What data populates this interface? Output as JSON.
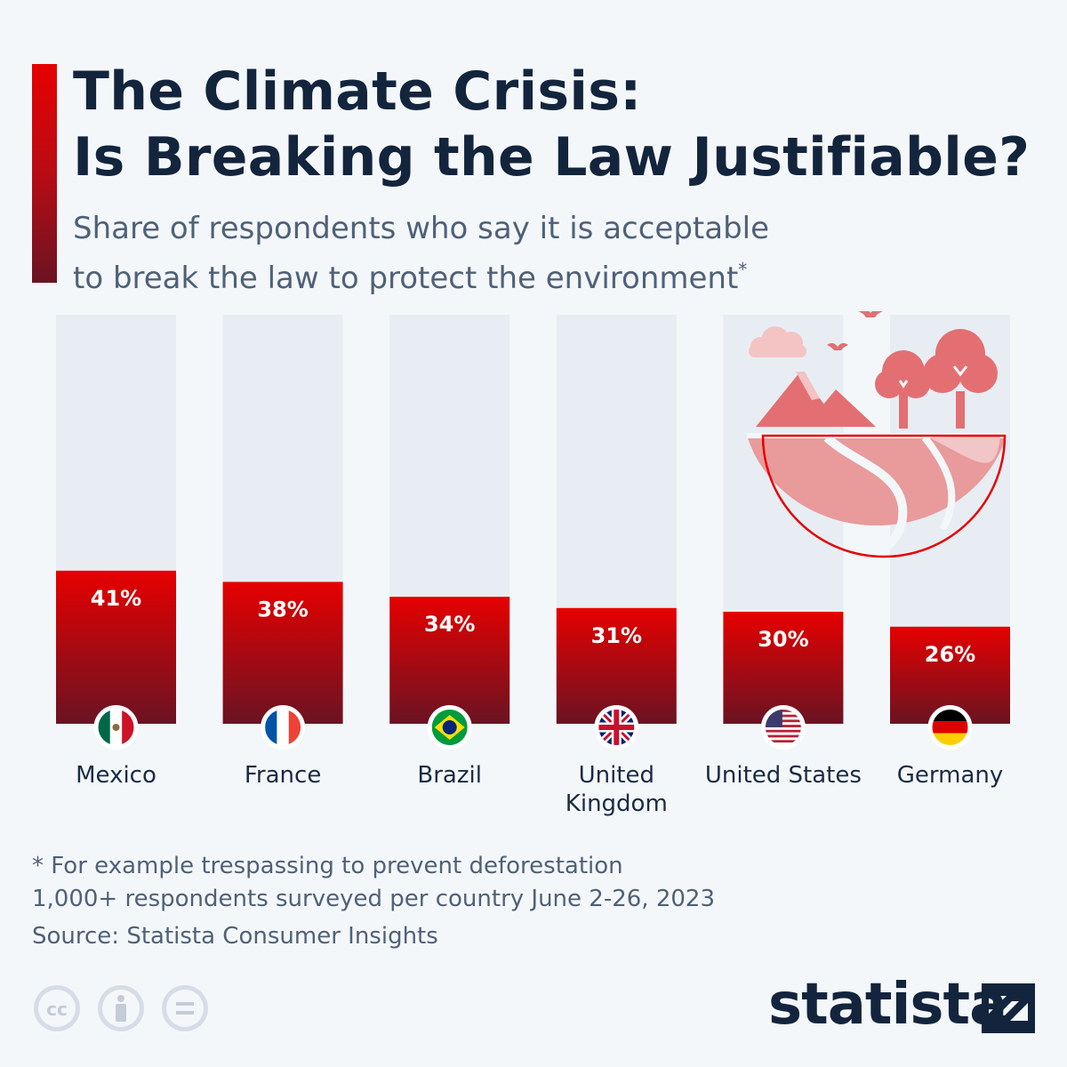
{
  "header": {
    "title_line1": "The Climate Crisis:",
    "title_line2": "Is Breaking the Law Justifiable?",
    "subtitle_line1": "Share of respondents who say it is acceptable",
    "subtitle_line2": "to break the law to protect the environment",
    "subtitle_marker": "*"
  },
  "chart_data": {
    "type": "bar",
    "title": "The Climate Crisis: Is Breaking the Law Justifiable?",
    "subtitle": "Share of respondents who say it is acceptable to break the law to protect the environment*",
    "categories": [
      "Mexico",
      "France",
      "Brazil",
      "United Kingdom",
      "United States",
      "Germany"
    ],
    "category_lines": [
      [
        "Mexico"
      ],
      [
        "France"
      ],
      [
        "Brazil"
      ],
      [
        "United",
        "Kingdom"
      ],
      [
        "United States"
      ],
      [
        "Germany"
      ]
    ],
    "values": [
      41,
      38,
      34,
      31,
      30,
      26
    ],
    "value_labels": [
      "41%",
      "38%",
      "34%",
      "31%",
      "30%",
      "26%"
    ],
    "flags": [
      "mexico-flag-icon",
      "france-flag-icon",
      "brazil-flag-icon",
      "uk-flag-icon",
      "usa-flag-icon",
      "germany-flag-icon"
    ],
    "ylim": [
      0,
      100
    ],
    "unit": "%",
    "grid": false,
    "legend": "none",
    "colors": {
      "bar_top": "#e60000",
      "bar_bottom": "#6a1322",
      "track": "#e8edf4",
      "illustration": "#e46f72"
    }
  },
  "footer": {
    "note": "* For example trespassing to prevent deforestation",
    "survey": "1,000+ respondents surveyed per country June 2-26, 2023",
    "source": "Source: Statista Consumer Insights",
    "brand": "statista",
    "license_icons": [
      "creative-commons-icon",
      "attribution-icon",
      "no-derivatives-icon"
    ]
  }
}
